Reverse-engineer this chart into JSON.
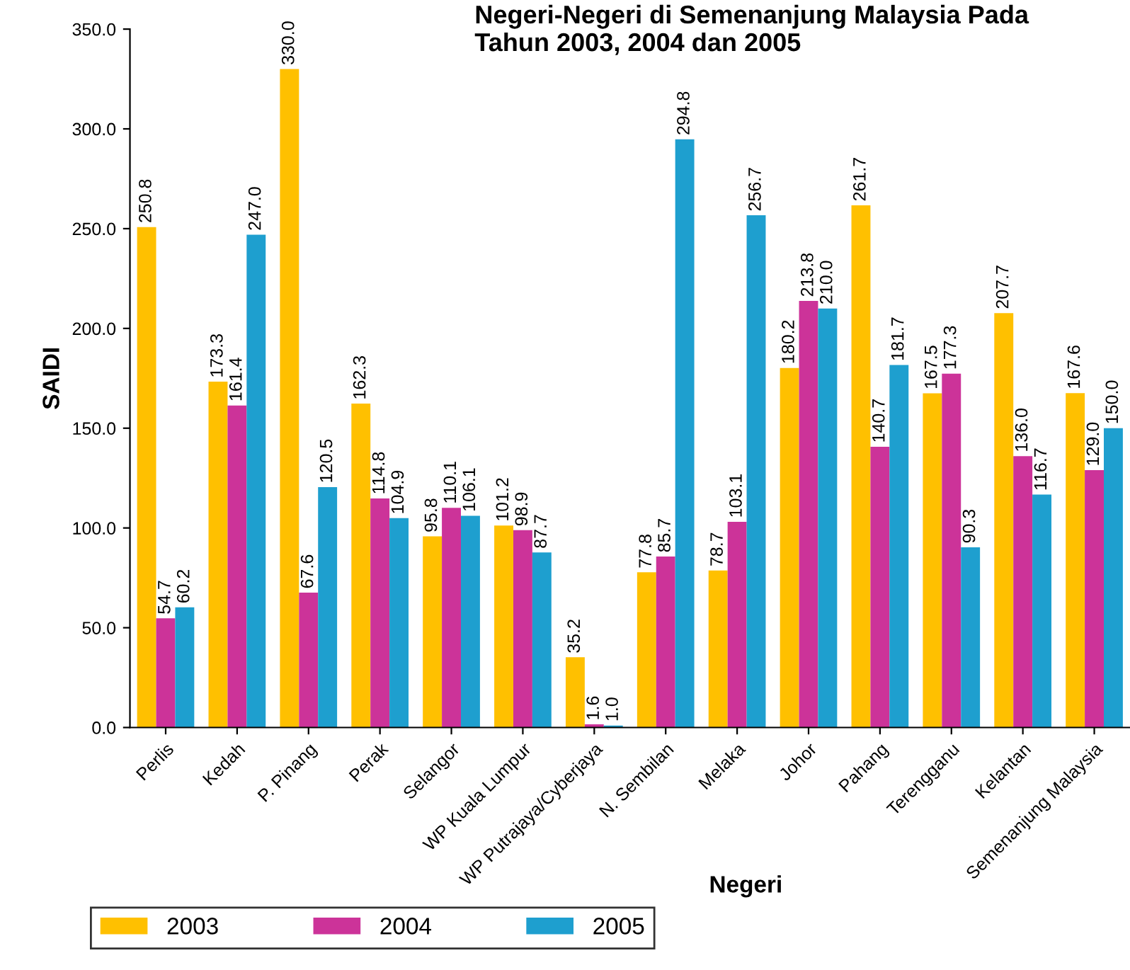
{
  "chart_data": {
    "type": "bar",
    "title": "Negeri-Negeri di Semenanjung Malaysia Pada\nTahun 2003, 2004 dan 2005",
    "xlabel": "Negeri",
    "ylabel": "SAIDI",
    "categories": [
      "Perlis",
      "Kedah",
      "P. Pinang",
      "Perak",
      "Selangor",
      "WP Kuala Lumpur",
      "WP Putrajaya/Cyberjaya",
      "N. Sembilan",
      "Melaka",
      "Johor",
      "Pahang",
      "Terengganu",
      "Kelantan",
      "Semenanjung Malaysia"
    ],
    "series": [
      {
        "name": "2003",
        "color": "#ffc000",
        "values": [
          250.8,
          173.3,
          330.0,
          162.3,
          95.8,
          101.2,
          35.2,
          77.8,
          78.7,
          180.2,
          261.7,
          167.5,
          207.7,
          167.6
        ],
        "value_labels": [
          "250.8",
          "173.3",
          "330.0",
          "162.3",
          "95.8",
          "101.2",
          "35.2",
          "77.8",
          "78.7",
          "180.2",
          "261.7",
          "167.5",
          "207.7",
          "167.6"
        ]
      },
      {
        "name": "2004",
        "color": "#cc3399",
        "values": [
          54.7,
          161.4,
          67.6,
          114.8,
          110.1,
          98.9,
          1.6,
          85.7,
          103.1,
          213.8,
          140.7,
          177.3,
          136.0,
          129.0
        ],
        "value_labels": [
          "54.7",
          "161.4",
          "67.6",
          "114.8",
          "110.1",
          "98.9",
          "1.6",
          "85.7",
          "103.1",
          "213.8",
          "140.7",
          "177.3",
          "136.0",
          "129.0"
        ]
      },
      {
        "name": "2005",
        "color": "#1e9fcf",
        "values": [
          60.2,
          247.0,
          120.5,
          104.9,
          106.1,
          87.7,
          1.0,
          294.8,
          256.7,
          210.0,
          181.7,
          90.3,
          116.7,
          150.0
        ],
        "value_labels": [
          "60.2",
          "247.0",
          "120.5",
          "104.9",
          "106.1",
          "87.7",
          "1.0",
          "294.8",
          "256.7",
          "210.0",
          "181.7",
          "90.3",
          "116.7",
          "150.0"
        ]
      }
    ],
    "ylim": [
      0,
      350
    ],
    "yticks": [
      {
        "value": 0,
        "label": "0.0"
      },
      {
        "value": 50,
        "label": "50.0"
      },
      {
        "value": 100,
        "label": "100.0"
      },
      {
        "value": 150,
        "label": "150.0"
      },
      {
        "value": 200,
        "label": "200.0"
      },
      {
        "value": 250,
        "label": "250.0"
      },
      {
        "value": 300,
        "label": "300.0"
      },
      {
        "value": 350,
        "label": "350.0"
      }
    ],
    "grid": false,
    "legend": "bottom left"
  }
}
